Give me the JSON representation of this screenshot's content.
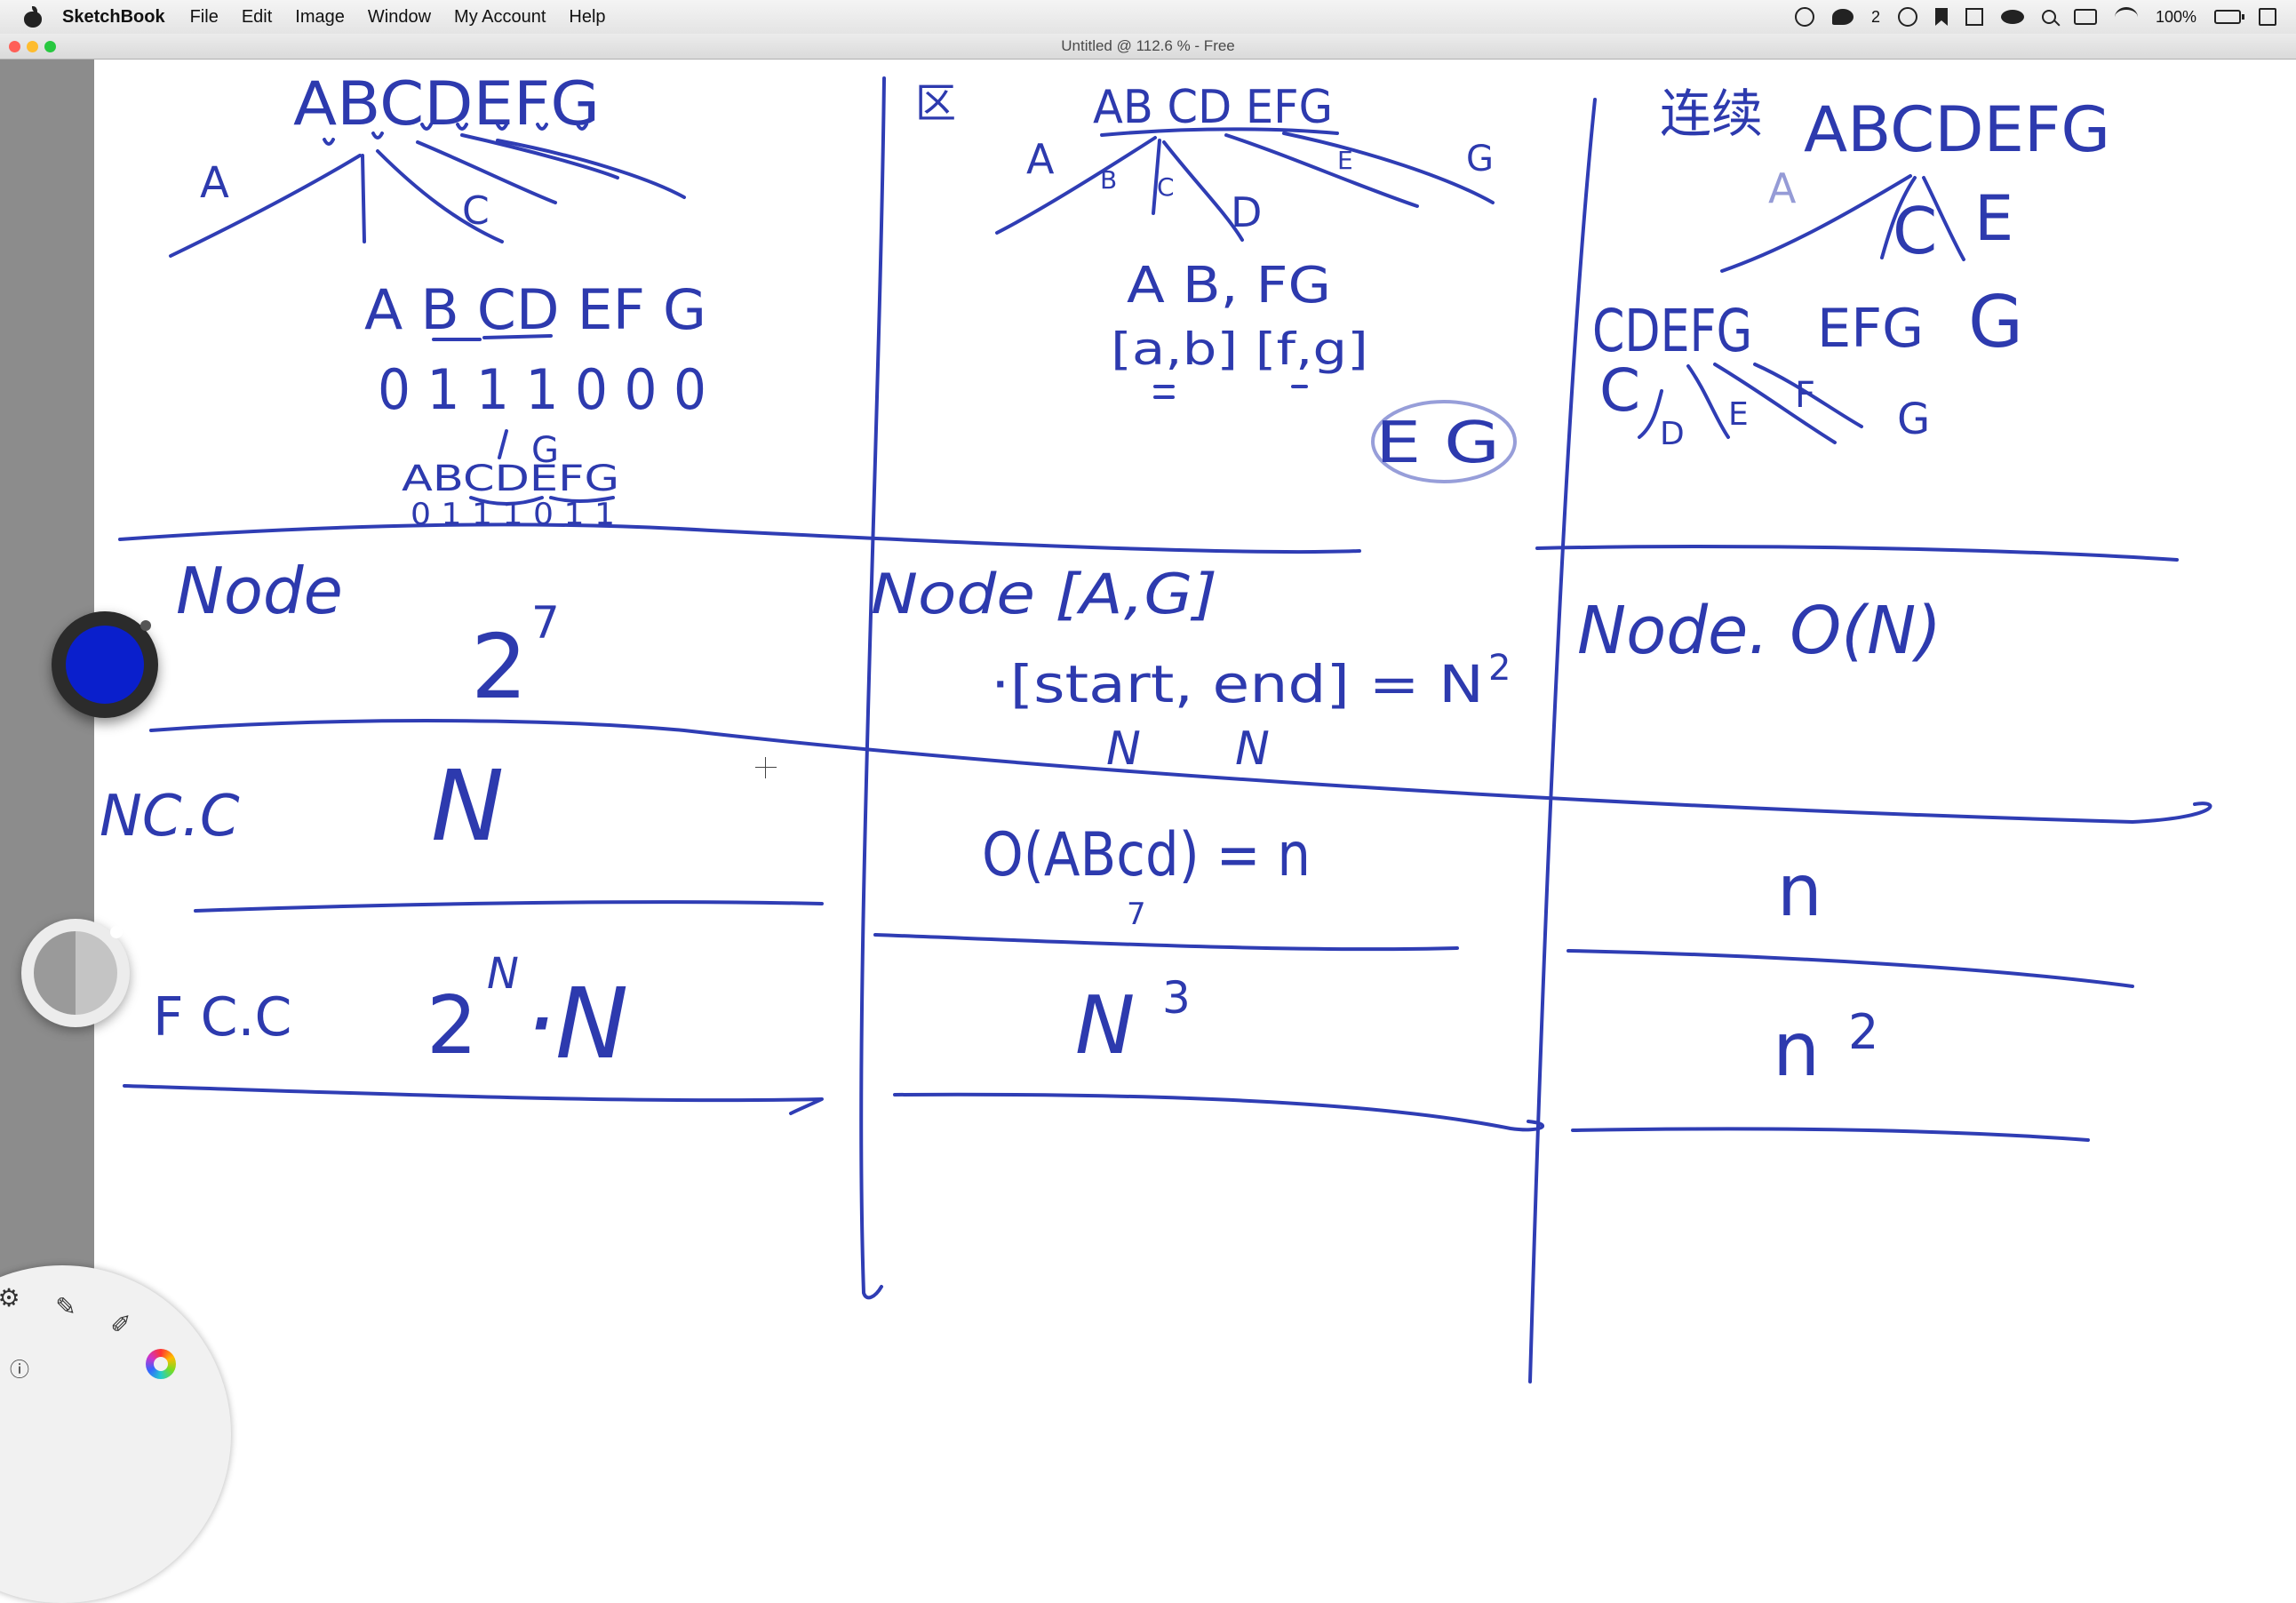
{
  "menubar": {
    "app_name": "SketchBook",
    "menus": [
      "File",
      "Edit",
      "Image",
      "Window",
      "My Account",
      "Help"
    ],
    "status": {
      "wechat_count": "2",
      "battery": "100%"
    }
  },
  "window": {
    "title": "Untitled @ 112.6 % - Free"
  },
  "icons": {
    "apple": "apple-logo-icon",
    "lagoon": [
      "settings-icon",
      "pen-tool-icon",
      "brush-tool-icon",
      "color-wheel-icon",
      "info-icon"
    ]
  },
  "colors": {
    "ink": "#2f3db4",
    "active_color": "#0a1fcc"
  },
  "canvas": {
    "col1": {
      "top_letters": "ABCDEFG",
      "tree_labels": [
        "A",
        "C"
      ],
      "letters2": "A B CD EF G",
      "bits2": "0 1 1 1 0 0 0",
      "small_letters": "ABCDEFG",
      "small_bits": "0 1 1 1 0 1 1",
      "small_mark": "G",
      "row_node_label": "Node",
      "row_node_value": "2",
      "row_node_exp": "7",
      "row_ncc_label": "NC.C",
      "row_ncc_value": "N",
      "row_fcc_label": "F C.C",
      "row_fcc_value": "2",
      "row_fcc_exp": "N",
      "row_fcc_tail": "·N"
    },
    "col2": {
      "header_mark": "区",
      "top_letters": "AB CD EFG",
      "tree_labels": [
        "A",
        "B",
        "C",
        "D",
        "E",
        "G"
      ],
      "group": "A B, FG",
      "ranges": "[a,b] [f,g]",
      "eg": "E G",
      "row_node_label": "Node [A,G]",
      "row_node_formula": "·[start, end] = N",
      "row_node_exp": "2",
      "row_node_n1": "N",
      "row_node_n2": "N",
      "row_ncc_value": "O(ABcd) = n",
      "row_ncc_sub": "7",
      "row_fcc_value": "N",
      "row_fcc_exp": "3"
    },
    "col3": {
      "header_mark": "连续",
      "top_letters": "ABCDEFG",
      "tree_labels": [
        "A",
        "C",
        "E"
      ],
      "row2": [
        "CDEFG",
        "EFG",
        "G"
      ],
      "subtree_labels": [
        "C",
        "D",
        "E",
        "F",
        "G"
      ],
      "row_node_label": "Node. O(N)",
      "row_ncc_value": "n",
      "row_fcc_value": "n",
      "row_fcc_exp": "2"
    }
  }
}
